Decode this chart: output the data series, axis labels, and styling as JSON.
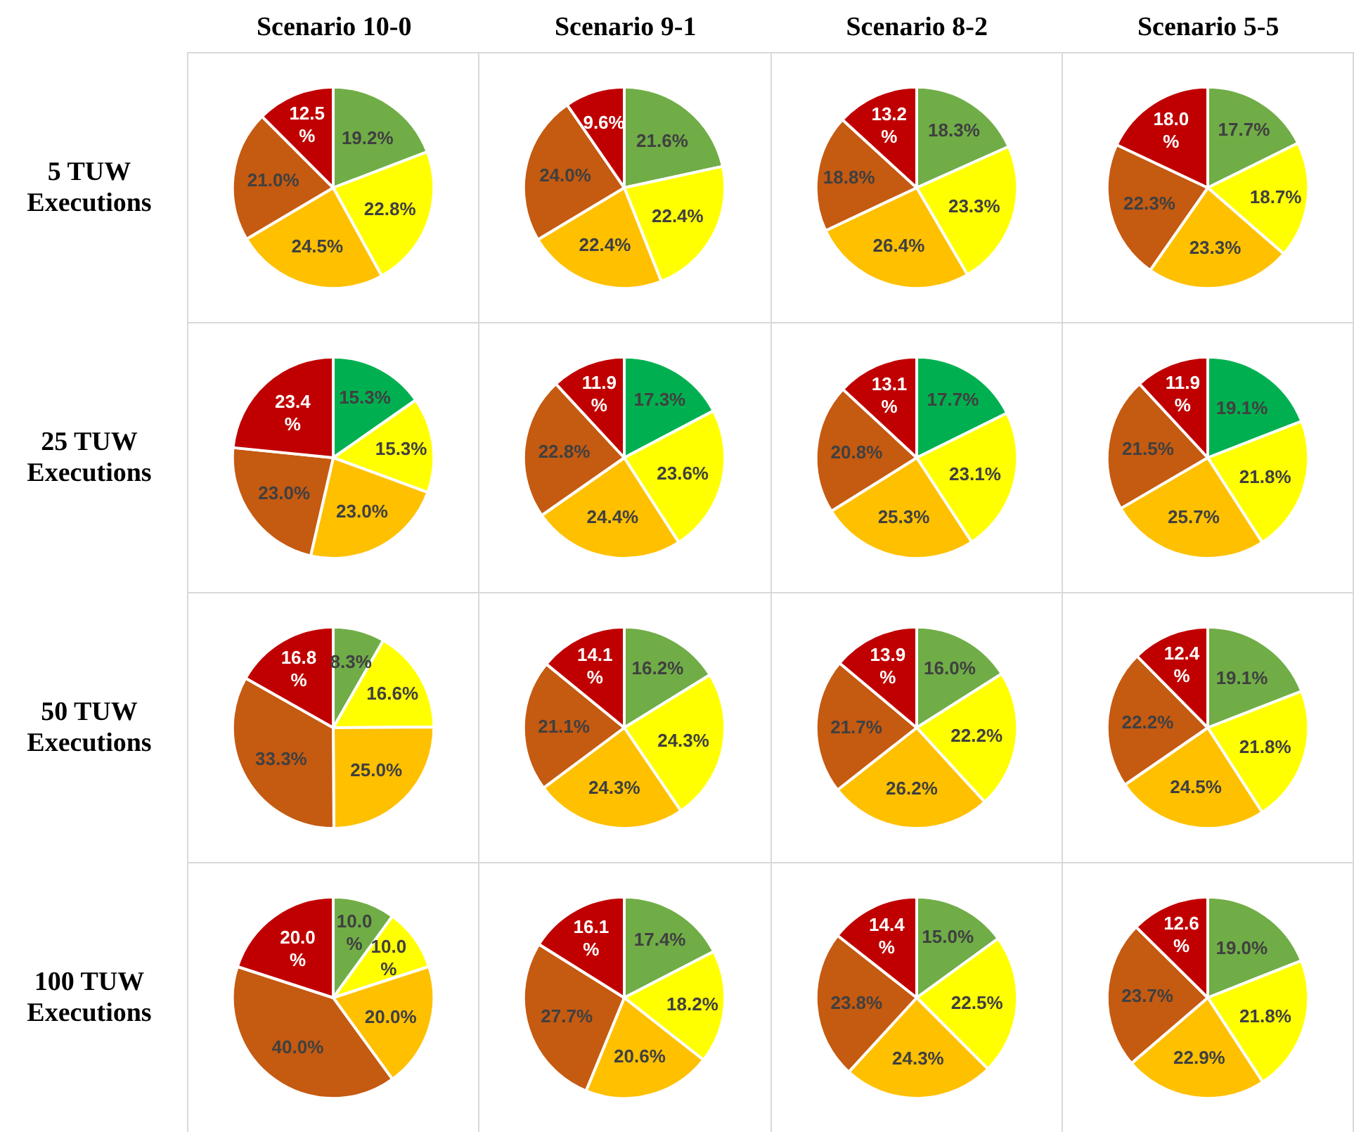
{
  "chart_data": [
    {
      "type": "pie",
      "title": "Scenario 10-0",
      "ylabel": "5 TUW Executions",
      "categories": [
        null,
        null,
        null,
        null,
        null
      ],
      "values": [
        19.2,
        22.8,
        24.5,
        21.0,
        12.5
      ],
      "value_labels": [
        "19.2%",
        "22.8%",
        "24.5%",
        "21.0%",
        "12.5%"
      ],
      "colors": [
        "#70ad47",
        "#ffff00",
        "#ffc000",
        "#c55a11",
        "#c00000"
      ]
    },
    {
      "type": "pie",
      "title": "Scenario 9-1",
      "categories": [
        null,
        null,
        null,
        null,
        null
      ],
      "values": [
        21.6,
        22.4,
        22.4,
        24.0,
        9.6
      ],
      "value_labels": [
        "21.6%",
        "22.4%",
        "22.4%",
        "24.0%",
        "9.6%"
      ],
      "colors": [
        "#70ad47",
        "#ffff00",
        "#ffc000",
        "#c55a11",
        "#c00000"
      ]
    },
    {
      "type": "pie",
      "title": "Scenario 8-2",
      "categories": [
        null,
        null,
        null,
        null,
        null
      ],
      "values": [
        18.3,
        23.3,
        26.4,
        18.8,
        13.2
      ],
      "value_labels": [
        "18.3%",
        "23.3%",
        "26.4%",
        "18.8%",
        "13.2%"
      ],
      "colors": [
        "#70ad47",
        "#ffff00",
        "#ffc000",
        "#c55a11",
        "#c00000"
      ]
    },
    {
      "type": "pie",
      "title": "Scenario 5-5",
      "categories": [
        null,
        null,
        null,
        null,
        null
      ],
      "values": [
        17.7,
        18.7,
        23.3,
        22.3,
        18.0
      ],
      "value_labels": [
        "17.7%",
        "18.7%",
        "23.3%",
        "22.3%",
        "18.0%"
      ],
      "colors": [
        "#70ad47",
        "#ffff00",
        "#ffc000",
        "#c55a11",
        "#c00000"
      ]
    },
    {
      "type": "pie",
      "ylabel": "25 TUW Executions",
      "categories": [
        null,
        null,
        null,
        null,
        null
      ],
      "values": [
        15.3,
        15.3,
        23.0,
        23.0,
        23.4
      ],
      "value_labels": [
        "15.3%",
        "15.3%",
        "23.0%",
        "23.0%",
        "23.4%"
      ],
      "colors": [
        "#00b050",
        "#ffff00",
        "#ffc000",
        "#c55a11",
        "#c00000"
      ]
    },
    {
      "type": "pie",
      "categories": [
        null,
        null,
        null,
        null,
        null
      ],
      "values": [
        17.3,
        23.6,
        24.4,
        22.8,
        11.9
      ],
      "value_labels": [
        "17.3%",
        "23.6%",
        "24.4%",
        "22.8%",
        "11.9%"
      ],
      "colors": [
        "#00b050",
        "#ffff00",
        "#ffc000",
        "#c55a11",
        "#c00000"
      ]
    },
    {
      "type": "pie",
      "categories": [
        null,
        null,
        null,
        null,
        null
      ],
      "values": [
        17.7,
        23.1,
        25.3,
        20.8,
        13.1
      ],
      "value_labels": [
        "17.7%",
        "23.1%",
        "25.3%",
        "20.8%",
        "13.1%"
      ],
      "colors": [
        "#00b050",
        "#ffff00",
        "#ffc000",
        "#c55a11",
        "#c00000"
      ]
    },
    {
      "type": "pie",
      "categories": [
        null,
        null,
        null,
        null,
        null
      ],
      "values": [
        19.1,
        21.8,
        25.7,
        21.5,
        11.9
      ],
      "value_labels": [
        "19.1%",
        "21.8%",
        "25.7%",
        "21.5%",
        "11.9%"
      ],
      "colors": [
        "#00b050",
        "#ffff00",
        "#ffc000",
        "#c55a11",
        "#c00000"
      ]
    },
    {
      "type": "pie",
      "ylabel": "50 TUW Executions",
      "categories": [
        null,
        null,
        null,
        null,
        null
      ],
      "values": [
        8.3,
        16.6,
        25.0,
        33.3,
        16.8
      ],
      "value_labels": [
        "8.3%",
        "16.6%",
        "25.0%",
        "33.3%",
        "16.8%"
      ],
      "colors": [
        "#70ad47",
        "#ffff00",
        "#ffc000",
        "#c55a11",
        "#c00000"
      ]
    },
    {
      "type": "pie",
      "categories": [
        null,
        null,
        null,
        null,
        null
      ],
      "values": [
        16.2,
        24.3,
        24.3,
        21.1,
        14.1
      ],
      "value_labels": [
        "16.2%",
        "24.3%",
        "24.3%",
        "21.1%",
        "14.1%"
      ],
      "colors": [
        "#70ad47",
        "#ffff00",
        "#ffc000",
        "#c55a11",
        "#c00000"
      ]
    },
    {
      "type": "pie",
      "categories": [
        null,
        null,
        null,
        null,
        null
      ],
      "values": [
        16.0,
        22.2,
        26.2,
        21.7,
        13.9
      ],
      "value_labels": [
        "16.0%",
        "22.2%",
        "26.2%",
        "21.7%",
        "13.9%"
      ],
      "colors": [
        "#70ad47",
        "#ffff00",
        "#ffc000",
        "#c55a11",
        "#c00000"
      ]
    },
    {
      "type": "pie",
      "categories": [
        null,
        null,
        null,
        null,
        null
      ],
      "values": [
        19.1,
        21.8,
        24.5,
        22.2,
        12.4
      ],
      "value_labels": [
        "19.1%",
        "21.8%",
        "24.5%",
        "22.2%",
        "12.4%"
      ],
      "colors": [
        "#70ad47",
        "#ffff00",
        "#ffc000",
        "#c55a11",
        "#c00000"
      ]
    },
    {
      "type": "pie",
      "ylabel": "100 TUW Executions",
      "categories": [
        null,
        null,
        null,
        null,
        null
      ],
      "values": [
        10.0,
        10.0,
        20.0,
        40.0,
        20.0
      ],
      "value_labels": [
        "10.0%",
        "10.0%",
        "20.0%",
        "40.0%",
        "20.0%"
      ],
      "colors": [
        "#70ad47",
        "#ffff00",
        "#ffc000",
        "#c55a11",
        "#c00000"
      ]
    },
    {
      "type": "pie",
      "categories": [
        null,
        null,
        null,
        null,
        null
      ],
      "values": [
        17.4,
        18.2,
        20.6,
        27.7,
        16.1
      ],
      "value_labels": [
        "17.4%",
        "18.2%",
        "20.6%",
        "27.7%",
        "16.1%"
      ],
      "colors": [
        "#70ad47",
        "#ffff00",
        "#ffc000",
        "#c55a11",
        "#c00000"
      ]
    },
    {
      "type": "pie",
      "categories": [
        null,
        null,
        null,
        null,
        null
      ],
      "values": [
        15.0,
        22.5,
        24.3,
        23.8,
        14.4
      ],
      "value_labels": [
        "15.0%",
        "22.5%",
        "24.3%",
        "23.8%",
        "14.4%"
      ],
      "colors": [
        "#70ad47",
        "#ffff00",
        "#ffc000",
        "#c55a11",
        "#c00000"
      ]
    },
    {
      "type": "pie",
      "categories": [
        null,
        null,
        null,
        null,
        null
      ],
      "values": [
        19.0,
        21.8,
        22.9,
        23.7,
        12.6
      ],
      "value_labels": [
        "19.0%",
        "21.8%",
        "22.9%",
        "23.7%",
        "12.6%"
      ],
      "colors": [
        "#70ad47",
        "#ffff00",
        "#ffc000",
        "#c55a11",
        "#c00000"
      ]
    }
  ]
}
